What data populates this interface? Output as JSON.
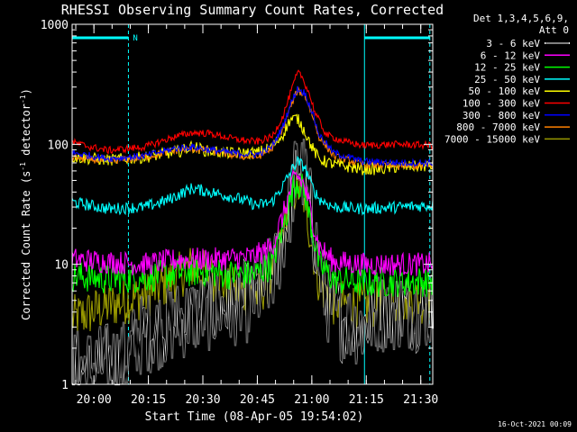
{
  "chart_data": {
    "type": "line",
    "title": "RHESSI Observing Summary Count Rates, Corrected",
    "xlabel": "Start Time (08-Apr-05 19:54:02)",
    "ylabel": "Corrected Count Rate (s⁻¹ detector⁻¹)",
    "ylabel_parts": [
      "Corrected Count Rate (s",
      "-1",
      " detector",
      "-1",
      ")"
    ],
    "yscale": "log",
    "ylim": [
      1,
      1000
    ],
    "xlim_minutes": [
      0,
      99.3
    ],
    "x_unit": "minutes after 19:54:02",
    "x_ticks": [
      {
        "label": "20:00",
        "minutes": 6.0
      },
      {
        "label": "20:15",
        "minutes": 21.0
      },
      {
        "label": "20:30",
        "minutes": 36.0
      },
      {
        "label": "20:45",
        "minutes": 51.0
      },
      {
        "label": "21:00",
        "minutes": 66.0
      },
      {
        "label": "21:15",
        "minutes": 81.0
      },
      {
        "label": "21:30",
        "minutes": 96.0
      }
    ],
    "y_ticks": [
      {
        "label": "1",
        "value": 1
      },
      {
        "label": "10",
        "value": 10
      },
      {
        "label": "100",
        "value": 100
      },
      {
        "label": "1000",
        "value": 1000
      }
    ],
    "legend": {
      "header": [
        "Det 1,3,4,5,6,9,",
        "Att 0"
      ],
      "placement": "right"
    },
    "annotations": {
      "night_label": "N",
      "night_intervals": [
        [
          0,
          15.5
        ],
        [
          80.5,
          98.5
        ]
      ]
    },
    "series": [
      {
        "name": "3 - 6 keV",
        "color": "#000000",
        "shade": "#000000",
        "noise": 0.35,
        "points": [
          [
            0,
            1.3
          ],
          [
            15,
            1.6
          ],
          [
            18,
            2.5
          ],
          [
            25,
            3.0
          ],
          [
            30,
            3.5
          ],
          [
            40,
            4.3
          ],
          [
            48,
            4.8
          ],
          [
            52,
            6
          ],
          [
            56,
            9
          ],
          [
            60,
            30
          ],
          [
            62,
            70
          ],
          [
            64,
            55
          ],
          [
            66,
            25
          ],
          [
            68,
            10
          ],
          [
            70,
            5
          ],
          [
            74,
            3.5
          ],
          [
            80,
            3.0
          ],
          [
            84,
            4.0
          ],
          [
            90,
            4.2
          ],
          [
            99,
            4.2
          ]
        ]
      },
      {
        "name": "6 - 12 keV",
        "color": "#ff00ff",
        "noise": 0.1,
        "points": [
          [
            0,
            11
          ],
          [
            10,
            10.5
          ],
          [
            20,
            10
          ],
          [
            30,
            11
          ],
          [
            40,
            11
          ],
          [
            50,
            11.5
          ],
          [
            55,
            14
          ],
          [
            58,
            25
          ],
          [
            61,
            50
          ],
          [
            62,
            55
          ],
          [
            64,
            45
          ],
          [
            66,
            25
          ],
          [
            68,
            14
          ],
          [
            72,
            10.5
          ],
          [
            80,
            10
          ],
          [
            90,
            10
          ],
          [
            99,
            10
          ]
        ]
      },
      {
        "name": "12 - 25 keV",
        "color": "#00ff00",
        "noise": 0.13,
        "points": [
          [
            0,
            8
          ],
          [
            10,
            7.5
          ],
          [
            20,
            7.8
          ],
          [
            30,
            8.5
          ],
          [
            36,
            8.8
          ],
          [
            44,
            8.2
          ],
          [
            50,
            8.2
          ],
          [
            55,
            10
          ],
          [
            58,
            20
          ],
          [
            61,
            45
          ],
          [
            62,
            50
          ],
          [
            64,
            40
          ],
          [
            66,
            20
          ],
          [
            68,
            10
          ],
          [
            72,
            7.5
          ],
          [
            80,
            7
          ],
          [
            90,
            7.2
          ],
          [
            99,
            7.2
          ]
        ]
      },
      {
        "name": "25 - 50 keV",
        "color": "#00ffff",
        "noise": 0.05,
        "points": [
          [
            0,
            33
          ],
          [
            10,
            29
          ],
          [
            20,
            30
          ],
          [
            26,
            34
          ],
          [
            33,
            43
          ],
          [
            38,
            40
          ],
          [
            45,
            36
          ],
          [
            51,
            31
          ],
          [
            55,
            33
          ],
          [
            58,
            45
          ],
          [
            61,
            65
          ],
          [
            62,
            72
          ],
          [
            64,
            65
          ],
          [
            66,
            45
          ],
          [
            68,
            35
          ],
          [
            72,
            30
          ],
          [
            80,
            29
          ],
          [
            90,
            30
          ],
          [
            99,
            31
          ]
        ]
      },
      {
        "name": "50 - 100 keV",
        "color": "#ffff00",
        "noise": 0.05,
        "points": [
          [
            0,
            78
          ],
          [
            10,
            74
          ],
          [
            20,
            78
          ],
          [
            30,
            88
          ],
          [
            33,
            96
          ],
          [
            37,
            88
          ],
          [
            45,
            84
          ],
          [
            51,
            85
          ],
          [
            55,
            95
          ],
          [
            58,
            120
          ],
          [
            60,
            160
          ],
          [
            62,
            165
          ],
          [
            64,
            130
          ],
          [
            66,
            95
          ],
          [
            68,
            75
          ],
          [
            72,
            68
          ],
          [
            80,
            62
          ],
          [
            85,
            62
          ],
          [
            90,
            65
          ],
          [
            99,
            66
          ]
        ]
      },
      {
        "name": "100 - 300 keV",
        "color": "#ff0000",
        "noise": 0.03,
        "points": [
          [
            0,
            104
          ],
          [
            5,
            95
          ],
          [
            10,
            89
          ],
          [
            20,
            95
          ],
          [
            28,
            115
          ],
          [
            33,
            125
          ],
          [
            38,
            123
          ],
          [
            45,
            110
          ],
          [
            51,
            105
          ],
          [
            55,
            115
          ],
          [
            58,
            170
          ],
          [
            60,
            260
          ],
          [
            62,
            390
          ],
          [
            63,
            380
          ],
          [
            65,
            280
          ],
          [
            67,
            180
          ],
          [
            70,
            120
          ],
          [
            75,
            105
          ],
          [
            80,
            98
          ],
          [
            90,
            100
          ],
          [
            99,
            98
          ]
        ]
      },
      {
        "name": "300 - 800 keV",
        "color": "#0000ff",
        "noise": 0.03,
        "points": [
          [
            0,
            85
          ],
          [
            10,
            76
          ],
          [
            20,
            80
          ],
          [
            28,
            92
          ],
          [
            33,
            95
          ],
          [
            38,
            90
          ],
          [
            45,
            84
          ],
          [
            51,
            82
          ],
          [
            55,
            95
          ],
          [
            58,
            140
          ],
          [
            60,
            210
          ],
          [
            62,
            290
          ],
          [
            64,
            270
          ],
          [
            66,
            190
          ],
          [
            68,
            120
          ],
          [
            72,
            85
          ],
          [
            80,
            72
          ],
          [
            90,
            70
          ],
          [
            99,
            70
          ]
        ]
      },
      {
        "name": "800 - 7000 keV",
        "color": "#ff8000",
        "noise": 0.03,
        "points": [
          [
            0,
            78
          ],
          [
            10,
            72
          ],
          [
            20,
            78
          ],
          [
            28,
            88
          ],
          [
            33,
            92
          ],
          [
            38,
            88
          ],
          [
            45,
            80
          ],
          [
            51,
            78
          ],
          [
            55,
            92
          ],
          [
            58,
            135
          ],
          [
            60,
            200
          ],
          [
            62,
            280
          ],
          [
            64,
            260
          ],
          [
            66,
            180
          ],
          [
            68,
            115
          ],
          [
            72,
            80
          ],
          [
            80,
            68
          ],
          [
            90,
            66
          ],
          [
            99,
            66
          ]
        ]
      },
      {
        "name": "7000 - 15000 keV",
        "color": "#999900",
        "noise": 0.2,
        "points": [
          [
            0,
            3.5
          ],
          [
            10,
            4.5
          ],
          [
            20,
            5.5
          ],
          [
            28,
            7.5
          ],
          [
            33,
            9.5
          ],
          [
            38,
            8
          ],
          [
            45,
            6
          ],
          [
            51,
            5.5
          ],
          [
            55,
            8
          ],
          [
            58,
            18
          ],
          [
            61,
            40
          ],
          [
            62,
            45
          ],
          [
            64,
            35
          ],
          [
            66,
            15
          ],
          [
            68,
            7
          ],
          [
            72,
            4.8
          ],
          [
            80,
            4.5
          ],
          [
            90,
            5
          ],
          [
            99,
            5
          ]
        ]
      }
    ]
  },
  "footer_timestamp": "16-Oct-2021 00:09"
}
